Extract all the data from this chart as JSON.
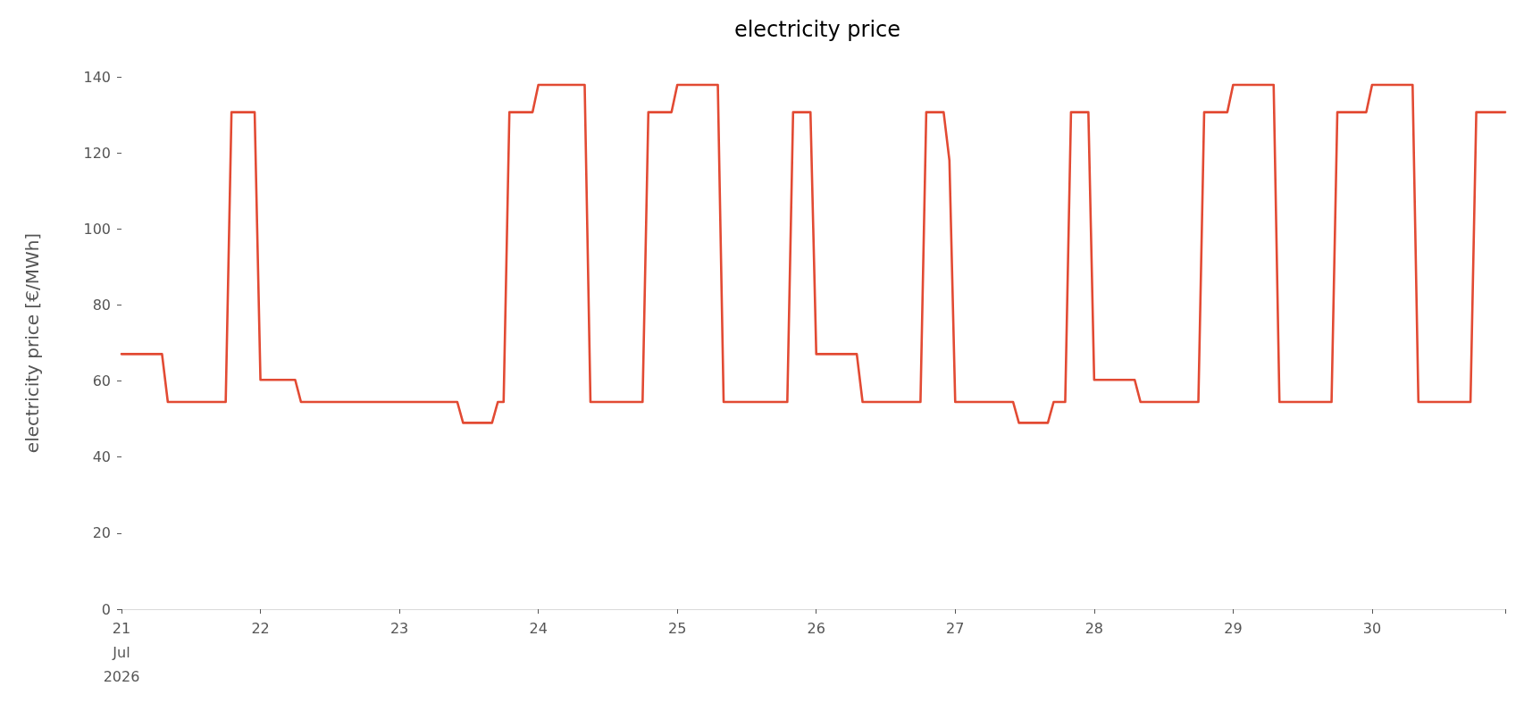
{
  "chart_data": {
    "type": "line",
    "title": "electricity price",
    "ylabel": "electricity price [€/MWh]",
    "x": [
      "2026-07-21T00:00",
      "2026-07-21T07:00",
      "2026-07-21T08:00",
      "2026-07-21T18:00",
      "2026-07-21T19:00",
      "2026-07-21T23:00",
      "2026-07-22T00:00",
      "2026-07-22T06:00",
      "2026-07-22T07:00",
      "2026-07-23T10:00",
      "2026-07-23T11:00",
      "2026-07-23T16:00",
      "2026-07-23T17:00",
      "2026-07-23T18:00",
      "2026-07-23T19:00",
      "2026-07-23T23:00",
      "2026-07-24T00:00",
      "2026-07-24T08:00",
      "2026-07-24T09:00",
      "2026-07-24T18:00",
      "2026-07-24T19:00",
      "2026-07-24T23:00",
      "2026-07-25T00:00",
      "2026-07-25T07:00",
      "2026-07-25T08:00",
      "2026-07-25T19:00",
      "2026-07-25T20:00",
      "2026-07-25T23:00",
      "2026-07-26T00:00",
      "2026-07-26T07:00",
      "2026-07-26T08:00",
      "2026-07-26T18:00",
      "2026-07-26T19:00",
      "2026-07-26T22:00",
      "2026-07-26T23:00",
      "2026-07-27T00:00",
      "2026-07-27T10:00",
      "2026-07-27T11:00",
      "2026-07-27T16:00",
      "2026-07-27T17:00",
      "2026-07-27T19:00",
      "2026-07-27T20:00",
      "2026-07-27T23:00",
      "2026-07-28T00:00",
      "2026-07-28T07:00",
      "2026-07-28T08:00",
      "2026-07-28T18:00",
      "2026-07-28T19:00",
      "2026-07-28T23:00",
      "2026-07-29T00:00",
      "2026-07-29T07:00",
      "2026-07-29T08:00",
      "2026-07-29T17:00",
      "2026-07-29T18:00",
      "2026-07-29T23:00",
      "2026-07-30T00:00",
      "2026-07-30T07:00",
      "2026-07-30T08:00",
      "2026-07-30T17:00",
      "2026-07-30T18:00",
      "2026-07-30T23:00"
    ],
    "values": [
      67.1,
      67.1,
      54.5,
      54.5,
      130.7,
      130.7,
      60.3,
      60.3,
      54.5,
      54.5,
      49.0,
      49.0,
      54.5,
      54.5,
      130.7,
      130.7,
      137.9,
      137.9,
      54.5,
      54.5,
      130.7,
      130.7,
      137.9,
      137.9,
      54.5,
      54.5,
      130.7,
      130.7,
      67.1,
      67.1,
      54.5,
      54.5,
      130.7,
      130.7,
      118,
      54.5,
      54.5,
      49.0,
      49.0,
      54.5,
      54.5,
      130.7,
      130.7,
      60.3,
      60.3,
      54.5,
      54.5,
      130.7,
      130.7,
      137.9,
      137.9,
      54.5,
      54.5,
      130.7,
      130.7,
      137.9,
      137.9,
      54.5,
      54.5,
      130.7,
      130.7
    ],
    "color": "#e24a33",
    "xlim": [
      "2026-07-21T00:00",
      "2026-07-30T23:00"
    ],
    "xticks": [
      {
        "value": "2026-07-21",
        "label": "21\nJul\n2026"
      },
      {
        "value": "2026-07-22",
        "label": "22"
      },
      {
        "value": "2026-07-23",
        "label": "23"
      },
      {
        "value": "2026-07-24",
        "label": "24"
      },
      {
        "value": "2026-07-25",
        "label": "25"
      },
      {
        "value": "2026-07-26",
        "label": "26"
      },
      {
        "value": "2026-07-27",
        "label": "27"
      },
      {
        "value": "2026-07-28",
        "label": "28"
      },
      {
        "value": "2026-07-29",
        "label": "29"
      },
      {
        "value": "2026-07-30",
        "label": "30"
      },
      {
        "value": "2026-07-30T23:00",
        "label": null
      }
    ],
    "ylim": [
      0,
      140
    ],
    "yticks": [
      0,
      20,
      40,
      60,
      80,
      100,
      120,
      140
    ],
    "grid": false,
    "marker": "none",
    "line_style": "solid"
  }
}
